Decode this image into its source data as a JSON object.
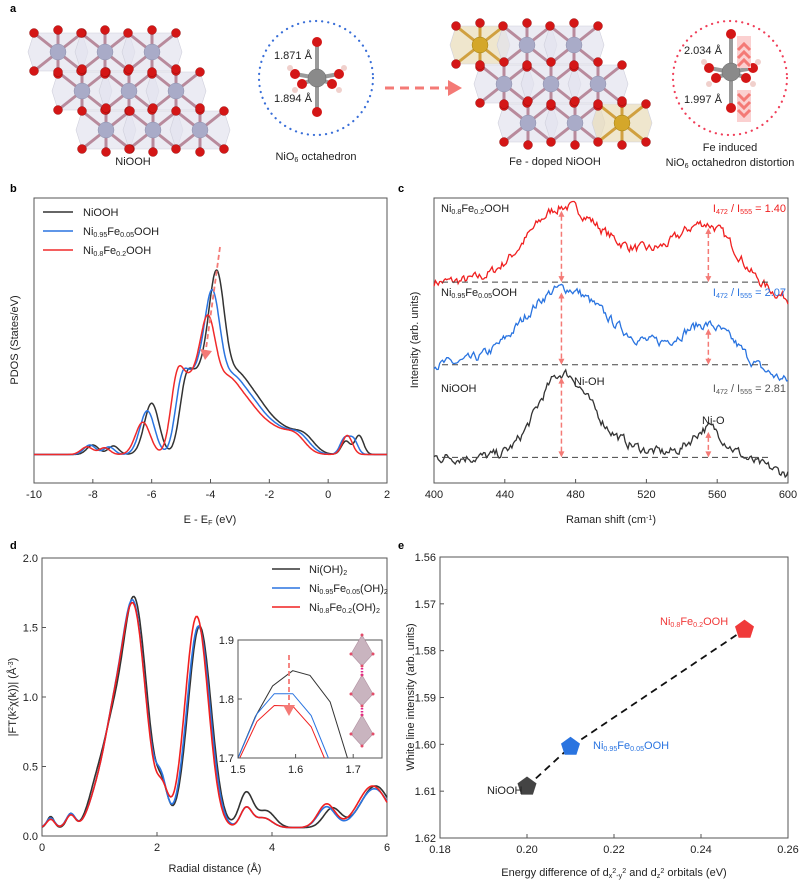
{
  "panel_letters": {
    "a": "a",
    "b": "b",
    "c": "c",
    "d": "d",
    "e": "e"
  },
  "panel_a": {
    "left_structure_label": "NiOOH",
    "left_octahedron_label": "NiO_{6} octahedron",
    "left_bond_top": "1.871 Å",
    "left_bond_bottom": "1.894 Å",
    "right_structure_label": "Fe - doped NiOOH",
    "right_caption_line1": "Fe induced",
    "right_caption_line2": "NiO_{6} octahedron distortion",
    "right_bond_top": "2.034 Å",
    "right_bond_bottom": "1.997 Å",
    "colors": {
      "ni": "#a9abc8",
      "o": "#d41616",
      "h": "#f0d0cc",
      "fe": "#d4a72a",
      "blue_dots": "#3a6fd8",
      "red_dots": "#f0405a",
      "arrow": "#f47a76"
    }
  },
  "chart_data": [
    {
      "panel": "b",
      "type": "line",
      "xlabel": "E - E_{F} (eV)",
      "ylabel": "PDOS (States/eV)",
      "xlim": [
        -10,
        2
      ],
      "ylim": [
        -0.15,
        1.35
      ],
      "xticks": [
        -10,
        -8,
        -6,
        -4,
        -2,
        0,
        2
      ],
      "legend_placement": "top-left",
      "series": [
        {
          "name": "NiOOH",
          "color": "#333333",
          "peaks": [
            [
              -8.0,
              0.05,
              0.2
            ],
            [
              -7.3,
              0.045,
              0.18
            ],
            [
              -6.0,
              0.27,
              0.25
            ],
            [
              -4.85,
              0.3,
              0.22
            ],
            [
              -4.4,
              0.35,
              0.3
            ],
            [
              -3.8,
              0.85,
              0.28
            ],
            [
              -3.2,
              0.25,
              0.35
            ],
            [
              -2.6,
              0.28,
              0.5
            ],
            [
              -1.6,
              0.12,
              0.5
            ],
            [
              -0.8,
              0.08,
              0.35
            ],
            [
              0.6,
              0.07,
              0.15
            ],
            [
              1.05,
              0.1,
              0.15
            ]
          ]
        },
        {
          "name": "Ni_{0.95}Fe_{0.05}OOH",
          "color": "#2a74e0",
          "peaks": [
            [
              -8.1,
              0.05,
              0.2
            ],
            [
              -7.45,
              0.04,
              0.18
            ],
            [
              -6.15,
              0.23,
              0.25
            ],
            [
              -5.0,
              0.3,
              0.22
            ],
            [
              -4.55,
              0.35,
              0.3
            ],
            [
              -3.95,
              0.75,
              0.28
            ],
            [
              -3.35,
              0.24,
              0.35
            ],
            [
              -2.75,
              0.27,
              0.5
            ],
            [
              -1.75,
              0.12,
              0.5
            ],
            [
              -0.95,
              0.08,
              0.35
            ],
            [
              0.55,
              0.08,
              0.15
            ],
            [
              0.85,
              0.08,
              0.15
            ]
          ]
        },
        {
          "name": "Ni_{0.8}Fe_{0.2}OOH",
          "color": "#f02a2a",
          "peaks": [
            [
              -8.2,
              0.04,
              0.2
            ],
            [
              -7.6,
              0.035,
              0.18
            ],
            [
              -6.3,
              0.17,
              0.25
            ],
            [
              -5.15,
              0.33,
              0.22
            ],
            [
              -4.7,
              0.33,
              0.3
            ],
            [
              -4.1,
              0.62,
              0.28
            ],
            [
              -3.5,
              0.24,
              0.35
            ],
            [
              -2.9,
              0.26,
              0.5
            ],
            [
              -1.9,
              0.12,
              0.5
            ],
            [
              -1.1,
              0.08,
              0.35
            ],
            [
              0.65,
              0.1,
              0.17
            ]
          ]
        }
      ]
    },
    {
      "panel": "c",
      "type": "line",
      "xlabel": "Raman shift (cm^{-1})",
      "ylabel": "Intensity (arb. units)",
      "xlim": [
        400,
        600
      ],
      "ylim": [
        0,
        10
      ],
      "xticks": [
        400,
        440,
        480,
        520,
        560,
        600
      ],
      "marker_positions": [
        472,
        555
      ],
      "series": [
        {
          "name": "Ni_{0.8}Fe_{0.2}OOH",
          "color": "#f02020",
          "baseline": 7.05,
          "peaks": [
            [
              472,
              2.5,
              20
            ],
            [
              520,
              0.9,
              25
            ],
            [
              555,
              1.7,
              15
            ]
          ],
          "ratio": "I_{472} / I_{555} = 1.40"
        },
        {
          "name": "Ni_{0.95}Fe_{0.05}OOH",
          "color": "#2a74e0",
          "baseline": 4.15,
          "peaks": [
            [
              472,
              2.55,
              22
            ],
            [
              520,
              0.55,
              28
            ],
            [
              555,
              1.15,
              14
            ]
          ],
          "ratio": "I_{472} / I_{555} = 2.07"
        },
        {
          "name": "NiOOH",
          "color": "#333333",
          "baseline": 0.9,
          "peaks": [
            [
              472,
              2.8,
              14
            ],
            [
              495,
              0.5,
              14
            ],
            [
              520,
              0.15,
              20
            ],
            [
              555,
              1.0,
              9
            ]
          ],
          "ratio": "I_{472} / I_{555} = 2.81"
        }
      ],
      "annotations": [
        "Ni-OH",
        "Ni-O"
      ]
    },
    {
      "panel": "d",
      "type": "line",
      "xlabel": "Radial distance (Å)",
      "ylabel": "|FT(k^{2}χ(k))| (Å^{-3})",
      "xlim": [
        0,
        6
      ],
      "ylim": [
        0,
        2
      ],
      "xticks": [
        0,
        2,
        4,
        6
      ],
      "yticks": [
        0.0,
        0.5,
        1.0,
        1.5,
        2.0
      ],
      "legend_placement": "top-right",
      "series": [
        {
          "name": "Ni(OH)_{2}",
          "color": "#333333",
          "base": 0.06,
          "peaks": [
            [
              0.15,
              0.08,
              0.06
            ],
            [
              0.5,
              0.1,
              0.07
            ],
            [
              0.95,
              0.28,
              0.15
            ],
            [
              1.2,
              0.45,
              0.15
            ],
            [
              1.6,
              1.65,
              0.22
            ],
            [
              2.1,
              0.22,
              0.1
            ],
            [
              2.74,
              1.45,
              0.2
            ],
            [
              3.55,
              0.25,
              0.12
            ],
            [
              3.9,
              0.12,
              0.15
            ],
            [
              5.05,
              0.14,
              0.15
            ],
            [
              5.8,
              0.3,
              0.25
            ]
          ]
        },
        {
          "name": "Ni_{0.95}Fe_{0.05}(OH)_{2}",
          "color": "#2a74e0",
          "base": 0.06,
          "peaks": [
            [
              0.15,
              0.07,
              0.07
            ],
            [
              0.5,
              0.1,
              0.08
            ],
            [
              0.95,
              0.22,
              0.15
            ],
            [
              1.2,
              0.45,
              0.15
            ],
            [
              1.58,
              1.62,
              0.22
            ],
            [
              2.08,
              0.27,
              0.1
            ],
            [
              2.72,
              1.45,
              0.2
            ],
            [
              3.55,
              0.14,
              0.1
            ],
            [
              3.85,
              0.07,
              0.15
            ],
            [
              4.95,
              0.15,
              0.15
            ],
            [
              5.78,
              0.28,
              0.25
            ]
          ]
        },
        {
          "name": "Ni_{0.8}Fe_{0.2}(OH)_{2}",
          "color": "#f02020",
          "base": 0.06,
          "peaks": [
            [
              0.15,
              0.06,
              0.07
            ],
            [
              0.5,
              0.09,
              0.08
            ],
            [
              0.95,
              0.22,
              0.15
            ],
            [
              1.2,
              0.45,
              0.15
            ],
            [
              1.58,
              1.6,
              0.22
            ],
            [
              2.1,
              0.22,
              0.1
            ],
            [
              2.69,
              1.52,
              0.2
            ],
            [
              3.55,
              0.14,
              0.1
            ],
            [
              3.85,
              0.07,
              0.15
            ],
            [
              4.95,
              0.17,
              0.15
            ],
            [
              5.75,
              0.3,
              0.25
            ]
          ]
        }
      ],
      "inset": {
        "xlim": [
          1.5,
          1.75
        ],
        "ylim": [
          1.7,
          1.9
        ],
        "xticks": [
          1.5,
          1.6,
          1.7
        ],
        "yticks": [
          1.7,
          1.8,
          1.9
        ],
        "series": [
          {
            "color": "#333333",
            "points": [
              [
                1.5,
                1.7
              ],
              [
                1.53,
                1.77
              ],
              [
                1.56,
                1.822
              ],
              [
                1.595,
                1.848
              ],
              [
                1.625,
                1.84
              ],
              [
                1.66,
                1.795
              ],
              [
                1.69,
                1.7
              ]
            ]
          },
          {
            "color": "#2a74e0",
            "points": [
              [
                1.5,
                1.7
              ],
              [
                1.533,
                1.775
              ],
              [
                1.563,
                1.809
              ],
              [
                1.595,
                1.809
              ],
              [
                1.627,
                1.772
              ],
              [
                1.657,
                1.7
              ]
            ]
          },
          {
            "color": "#f02020",
            "points": [
              [
                1.503,
                1.7
              ],
              [
                1.533,
                1.762
              ],
              [
                1.563,
                1.789
              ],
              [
                1.595,
                1.788
              ],
              [
                1.627,
                1.753
              ],
              [
                1.65,
                1.7
              ]
            ]
          }
        ]
      }
    },
    {
      "panel": "e",
      "type": "scatter",
      "xlabel": "Energy difference of d_{x}^{2}_{-y}^{2} and d_{z}^{2} orbitals (eV)",
      "ylabel": "White line intensity  (arb. units)",
      "xlim": [
        0.18,
        0.26
      ],
      "ylim": [
        1.56,
        1.62
      ],
      "y_inverted": true,
      "xticks": [
        "0.18",
        "0.20",
        "0.22",
        "0.24",
        "0.26"
      ],
      "yticks": [
        "1.56",
        "1.57",
        "1.58",
        "1.59",
        "1.60",
        "1.61",
        "1.62"
      ],
      "points": [
        {
          "name": "NiOOH",
          "x": 0.2,
          "y": 1.609,
          "color": "#444444"
        },
        {
          "name": "Ni_{0.95}Fe_{0.05}OOH",
          "x": 0.21,
          "y": 1.6005,
          "color": "#2a74e0"
        },
        {
          "name": "Ni_{0.8}Fe_{0.2}OOH",
          "x": 0.25,
          "y": 1.5755,
          "color": "#f03a3a"
        }
      ]
    }
  ]
}
